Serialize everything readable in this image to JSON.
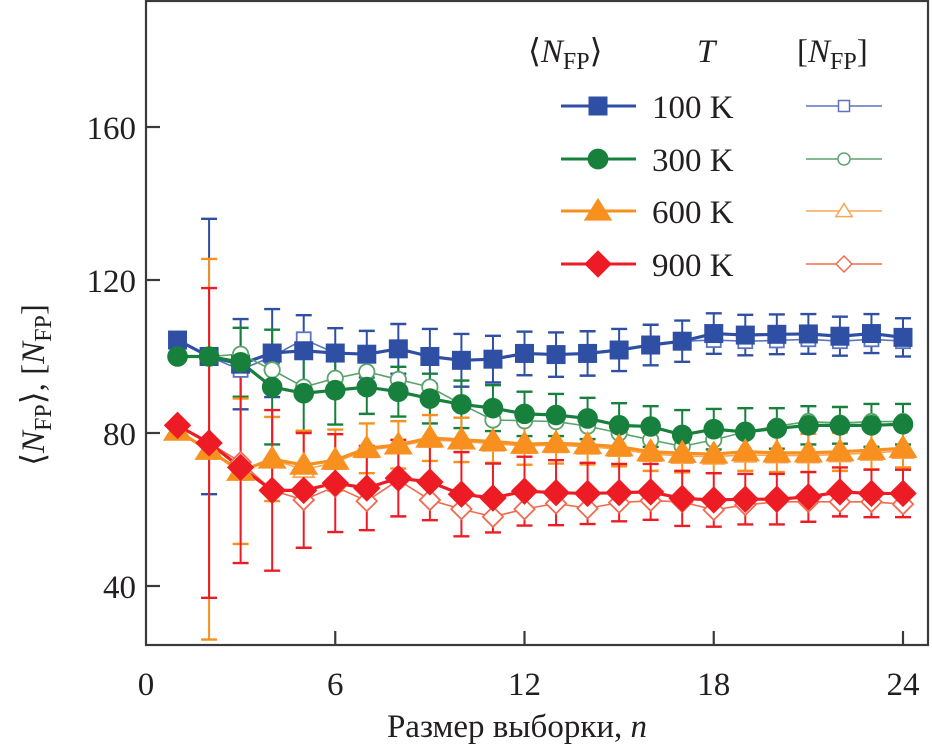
{
  "chart_data": {
    "type": "line",
    "title": "",
    "xlabel": "Размер выборки, n",
    "xlabel_parts": {
      "text": "Размер выборки, ",
      "var": "n"
    },
    "ylabel": "⟨N_FP⟩, [N_FP]",
    "ylabel_parts": {
      "open": "⟨",
      "var": "N",
      "sub": "FP",
      "close": "⟩, [",
      "var2": "N",
      "sub2": "FP",
      "close2": "]"
    },
    "xlim": [
      0,
      24.9
    ],
    "ylim": [
      25,
      193
    ],
    "x_ticks": [
      0,
      6,
      12,
      18,
      24
    ],
    "x_tick_labels": [
      "0",
      "6",
      "12",
      "18",
      "24"
    ],
    "y_ticks": [
      40,
      80,
      120,
      160
    ],
    "y_tick_labels": [
      "40",
      "80",
      "120",
      "160"
    ],
    "grid": false,
    "legend": {
      "placement": "top-right",
      "header_mean": {
        "open": "⟨",
        "var": "N",
        "sub": "FP",
        "close": "⟩"
      },
      "header_T": "T",
      "header_median": {
        "open": "[",
        "var": "N",
        "sub": "FP",
        "close": "]"
      },
      "entries": [
        "100 K",
        "300 K",
        "600 K",
        "900 K"
      ]
    },
    "x": [
      1,
      2,
      3,
      4,
      5,
      6,
      7,
      8,
      9,
      10,
      11,
      12,
      13,
      14,
      15,
      16,
      17,
      18,
      19,
      20,
      21,
      22,
      23,
      24
    ],
    "series": [
      {
        "name": "⟨N_FP⟩ 100 K",
        "temperature": "100 K",
        "statistic": "mean",
        "marker": "square",
        "filled": true,
        "color": "#2e4fa3",
        "values": [
          104.3,
          100,
          98,
          100.9,
          101.5,
          100.9,
          100.6,
          102,
          100,
          99,
          99.3,
          100.8,
          100.5,
          100.8,
          101.7,
          103,
          104,
          106,
          105.6,
          105.8,
          105.9,
          105.3,
          106,
          105
        ],
        "errors": [
          0,
          36,
          11.8,
          11.5,
          9.3,
          6.5,
          6.1,
          6.5,
          7.2,
          6.9,
          6.1,
          5.7,
          5.8,
          5.8,
          5.5,
          5.3,
          5.4,
          5.3,
          5.3,
          5.2,
          5.2,
          5.1,
          5.1,
          5.0
        ]
      },
      {
        "name": "[N_FP] 100 K",
        "temperature": "100 K",
        "statistic": "median",
        "marker": "square",
        "filled": false,
        "color": "#5b73c0",
        "values": [
          104.3,
          100,
          96.5,
          100,
          104.5,
          100.9,
          100.6,
          102,
          100,
          99,
          99.3,
          100.6,
          100.5,
          100.8,
          101.7,
          102.8,
          104,
          104.3,
          104,
          104.2,
          104.5,
          104,
          104.5,
          104
        ]
      },
      {
        "name": "⟨N_FP⟩ 300 K",
        "temperature": "300 K",
        "statistic": "mean",
        "marker": "circle",
        "filled": true,
        "color": "#16803c",
        "values": [
          100,
          100,
          98.5,
          92,
          90.4,
          91.2,
          92,
          90.8,
          89,
          87.5,
          86.5,
          85,
          84.7,
          83.8,
          82,
          81.7,
          79.5,
          81,
          80.3,
          81.2,
          82,
          82,
          82,
          82.3
        ],
        "errors": [
          0,
          0,
          9,
          15,
          10,
          9,
          7,
          6.5,
          6.5,
          6.2,
          6,
          5.8,
          5.5,
          5.4,
          5.8,
          5.3,
          6.5,
          5.3,
          6.2,
          5.3,
          5,
          4.8,
          5.6,
          5.3
        ]
      },
      {
        "name": "[N_FP] 300 K",
        "temperature": "300 K",
        "statistic": "median",
        "marker": "circle",
        "filled": false,
        "color": "#5aa46c",
        "values": [
          100,
          100,
          100.6,
          96.5,
          92,
          94.3,
          96,
          94,
          92,
          87.5,
          83.4,
          83.2,
          83,
          81.8,
          80,
          78.2,
          76.5,
          78.2,
          80.3,
          81.8,
          83,
          82.6,
          83,
          83
        ]
      },
      {
        "name": "⟨N_FP⟩ 600 K",
        "temperature": "600 K",
        "statistic": "mean",
        "marker": "triangle",
        "filled": true,
        "color": "#f7901e",
        "values": [
          80.5,
          75.5,
          70,
          73.2,
          71.6,
          72.9,
          76,
          76.9,
          78.7,
          78.2,
          77.8,
          77.1,
          77.3,
          77,
          76.4,
          75.1,
          74.7,
          74.5,
          75.1,
          74.8,
          74.8,
          75.1,
          75.5,
          76
        ],
        "errors": [
          0,
          50,
          19,
          11,
          9,
          8,
          6.5,
          6.2,
          6,
          5.8,
          5.6,
          5.4,
          5.3,
          5.2,
          5.1,
          5,
          5,
          5,
          5,
          5,
          5,
          5,
          5,
          5
        ]
      },
      {
        "name": "[N_FP] 600 K",
        "temperature": "600 K",
        "statistic": "median",
        "marker": "triangle",
        "filled": false,
        "color": "#f9a55a",
        "values": [
          80.5,
          75.5,
          70,
          73.2,
          70.3,
          72.4,
          75.5,
          76.5,
          78.2,
          77.8,
          77.2,
          76.6,
          76.8,
          76.4,
          75.8,
          74.5,
          74,
          73.8,
          74.3,
          74.1,
          74.1,
          74.4,
          74.8,
          75.3
        ]
      },
      {
        "name": "⟨N_FP⟩ 900 K",
        "temperature": "900 K",
        "statistic": "mean",
        "marker": "diamond",
        "filled": true,
        "color": "#ed1c24",
        "values": [
          82,
          77.4,
          71,
          65,
          65,
          66.9,
          65.6,
          68.2,
          67.2,
          64,
          63,
          64.8,
          64.4,
          64.2,
          64.4,
          64.6,
          62.9,
          62.5,
          62.7,
          62.7,
          63.3,
          64.6,
          64.2,
          64.2
        ],
        "errors": [
          0,
          40.5,
          25,
          21,
          15,
          12.8,
          11,
          10,
          10,
          11,
          9,
          9,
          8.5,
          8,
          7.5,
          7.3,
          7.2,
          7,
          6.6,
          6.6,
          6.5,
          6.4,
          6.2,
          6.2
        ]
      },
      {
        "name": "[N_FP] 900 K",
        "temperature": "900 K",
        "statistic": "median",
        "marker": "diamond",
        "filled": false,
        "color": "#f26b4f",
        "values": [
          82,
          77.4,
          72.4,
          65,
          62.5,
          66,
          62.2,
          67.7,
          62.5,
          60.1,
          58.1,
          60.1,
          61.6,
          60.3,
          61.8,
          62.3,
          62,
          59.9,
          61.2,
          62,
          62,
          62,
          62,
          61.4
        ]
      }
    ]
  }
}
